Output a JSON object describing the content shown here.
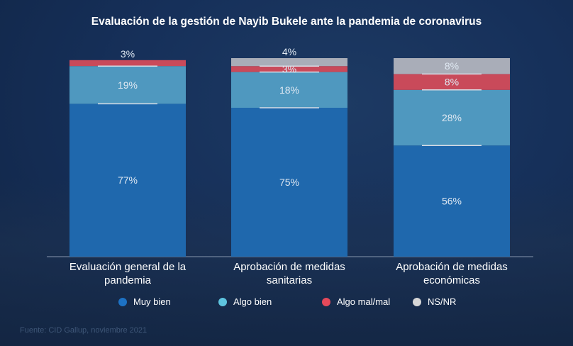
{
  "chart_data": {
    "type": "bar",
    "stacked": true,
    "title": "Evaluación de la gestión de Nayib Bukele ante la pandemia de coronavirus",
    "categories": [
      "Evaluación general de la pandemia",
      "Aprobación de medidas sanitarias",
      "Aprobación de medidas económicas"
    ],
    "series": [
      {
        "name": "Muy bien",
        "color": "#1f68ad",
        "values": [
          77,
          75,
          56
        ],
        "labels": [
          "77%",
          "75%",
          "56%"
        ]
      },
      {
        "name": "Algo bien",
        "color": "#4f98bf",
        "values": [
          19,
          18,
          28
        ],
        "labels": [
          "19%",
          "18%",
          "28%"
        ]
      },
      {
        "name": "Algo mal/mal",
        "color": "#c94a5a",
        "values": [
          3,
          3,
          8
        ],
        "labels": [
          "3%",
          "3%",
          "8%"
        ]
      },
      {
        "name": "NS/NR",
        "color": "#a9adb8",
        "values": [
          0,
          4,
          8
        ],
        "labels": [
          "",
          "4%",
          "8%"
        ]
      }
    ],
    "ylim": [
      0,
      100
    ],
    "grid": false,
    "legend_position": "bottom",
    "legend_colors": [
      "#1d72c4",
      "#5ec4df",
      "#e5495a",
      "#d6d6d6"
    ],
    "source": "Fuente: CID Gallup, noviembre 2021"
  }
}
